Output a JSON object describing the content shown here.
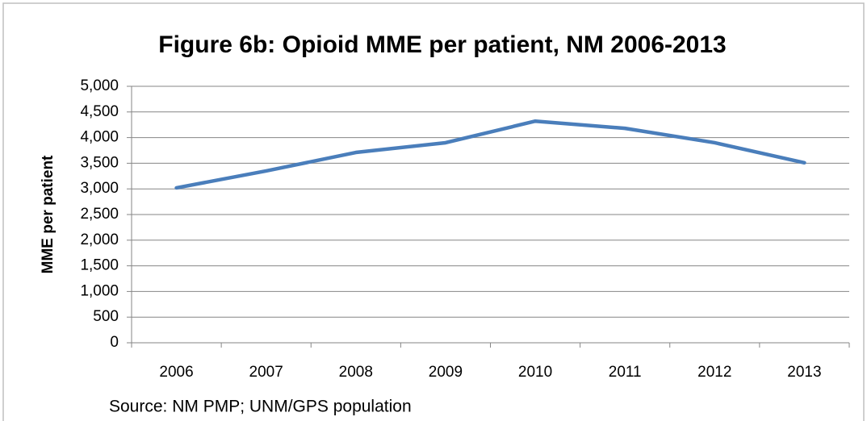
{
  "chart_data": {
    "type": "line",
    "title": "Figure 6b: Opioid MME per patient, NM 2006-2013",
    "y_label": "MME per patient",
    "source": "Source:  NM PMP; UNM/GPS population",
    "categories": [
      "2006",
      "2007",
      "2008",
      "2009",
      "2010",
      "2011",
      "2012",
      "2013"
    ],
    "values": [
      3020,
      3350,
      3710,
      3900,
      4320,
      4180,
      3900,
      3510
    ],
    "color": "#4a7ebb",
    "ylim": [
      0,
      5000
    ],
    "yticks": [
      0,
      500,
      {
        "value": 1000,
        "label": "1,000"
      },
      {
        "value": 1500,
        "label": "1,500"
      },
      {
        "value": 2000,
        "label": "2,000"
      },
      {
        "value": 2500,
        "label": "2,500"
      },
      {
        "value": 3000,
        "label": "3,000"
      },
      {
        "value": 3500,
        "label": "3,500"
      },
      {
        "value": 4000,
        "label": "4,000"
      },
      {
        "value": 4500,
        "label": "4,500"
      },
      {
        "value": 5000,
        "label": "5,000"
      }
    ],
    "grid": true
  }
}
